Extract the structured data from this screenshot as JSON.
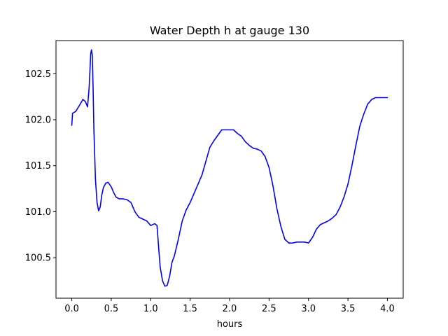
{
  "chart_data": {
    "type": "line",
    "title": "Water Depth h at gauge 130",
    "xlabel": "hours",
    "ylabel": "",
    "xlim": [
      -0.2,
      4.2
    ],
    "ylim": [
      100.06,
      102.86
    ],
    "xticks": [
      0.0,
      0.5,
      1.0,
      1.5,
      2.0,
      2.5,
      3.0,
      3.5,
      4.0
    ],
    "xtick_labels": [
      "0.0",
      "0.5",
      "1.0",
      "1.5",
      "2.0",
      "2.5",
      "3.0",
      "3.5",
      "4.0"
    ],
    "yticks": [
      100.5,
      101.0,
      101.5,
      102.0,
      102.5
    ],
    "ytick_labels": [
      "100.5",
      "101.0",
      "101.5",
      "102.0",
      "102.5"
    ],
    "grid": false,
    "series": [
      {
        "color": "#0000ff",
        "x": [
          0.0,
          0.01,
          0.05,
          0.1,
          0.14,
          0.17,
          0.2,
          0.22,
          0.24,
          0.25,
          0.26,
          0.27,
          0.28,
          0.3,
          0.32,
          0.34,
          0.36,
          0.38,
          0.4,
          0.43,
          0.46,
          0.5,
          0.53,
          0.56,
          0.6,
          0.65,
          0.7,
          0.75,
          0.8,
          0.85,
          0.9,
          0.95,
          1.0,
          1.05,
          1.08,
          1.1,
          1.12,
          1.15,
          1.18,
          1.21,
          1.24,
          1.27,
          1.3,
          1.35,
          1.4,
          1.45,
          1.5,
          1.55,
          1.6,
          1.65,
          1.7,
          1.75,
          1.8,
          1.85,
          1.9,
          1.95,
          2.0,
          2.05,
          2.1,
          2.15,
          2.2,
          2.25,
          2.3,
          2.35,
          2.4,
          2.45,
          2.5,
          2.55,
          2.6,
          2.65,
          2.7,
          2.75,
          2.8,
          2.85,
          2.9,
          2.95,
          3.0,
          3.05,
          3.1,
          3.15,
          3.2,
          3.25,
          3.3,
          3.35,
          3.4,
          3.45,
          3.5,
          3.55,
          3.6,
          3.65,
          3.7,
          3.75,
          3.8,
          3.85,
          3.9,
          3.95,
          4.0
        ],
        "y": [
          101.94,
          102.07,
          102.09,
          102.16,
          102.22,
          102.2,
          102.14,
          102.35,
          102.72,
          102.76,
          102.7,
          102.35,
          101.9,
          101.35,
          101.1,
          101.01,
          101.05,
          101.18,
          101.26,
          101.31,
          101.32,
          101.27,
          101.21,
          101.16,
          101.14,
          101.14,
          101.13,
          101.1,
          101.0,
          100.94,
          100.92,
          100.9,
          100.85,
          100.87,
          100.85,
          100.62,
          100.4,
          100.25,
          100.19,
          100.2,
          100.3,
          100.45,
          100.52,
          100.7,
          100.9,
          101.02,
          101.1,
          101.2,
          101.3,
          101.4,
          101.55,
          101.7,
          101.77,
          101.83,
          101.89,
          101.89,
          101.89,
          101.89,
          101.85,
          101.82,
          101.76,
          101.72,
          101.69,
          101.68,
          101.66,
          101.6,
          101.48,
          101.28,
          101.03,
          100.84,
          100.7,
          100.66,
          100.66,
          100.67,
          100.67,
          100.67,
          100.66,
          100.72,
          100.81,
          100.86,
          100.88,
          100.9,
          100.93,
          100.97,
          101.05,
          101.16,
          101.3,
          101.5,
          101.72,
          101.93,
          102.06,
          102.17,
          102.22,
          102.24,
          102.24,
          102.24,
          102.24
        ]
      }
    ]
  }
}
